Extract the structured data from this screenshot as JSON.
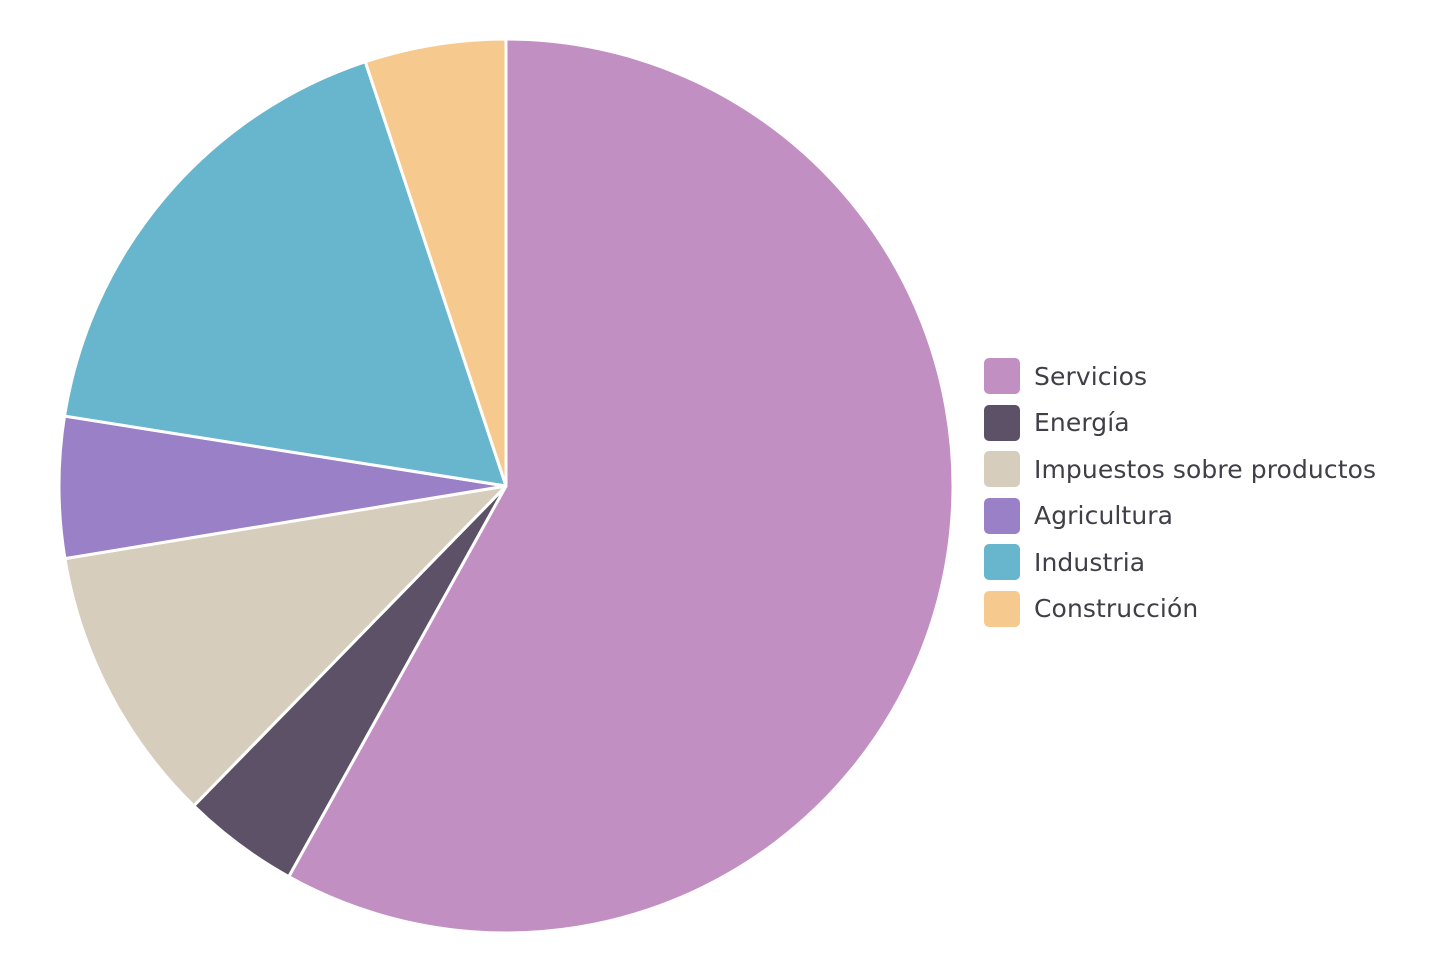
{
  "chart_data": {
    "type": "pie",
    "categories": [
      "Servicios",
      "Energía",
      "Impuestos sobre productos",
      "Agricultura",
      "Industria",
      "Construcción"
    ],
    "values": [
      60.4,
      4.4,
      10.5,
      5.3,
      18.1,
      5.3
    ],
    "colors": [
      "#c28fc3",
      "#5c5166",
      "#d6cdbc",
      "#9a80c6",
      "#67b6cd",
      "#f6ca8e"
    ],
    "start_angle_deg": 0,
    "direction": "clockwise",
    "legend_position": "right"
  },
  "legend": {
    "items": [
      {
        "label": "Servicios",
        "color": "#c28fc3"
      },
      {
        "label": "Energía",
        "color": "#5c5166"
      },
      {
        "label": "Impuestos sobre productos",
        "color": "#d6cdbc"
      },
      {
        "label": "Agricultura",
        "color": "#9a80c6"
      },
      {
        "label": "Industria",
        "color": "#67b6cd"
      },
      {
        "label": "Construcción",
        "color": "#f6ca8e"
      }
    ]
  }
}
